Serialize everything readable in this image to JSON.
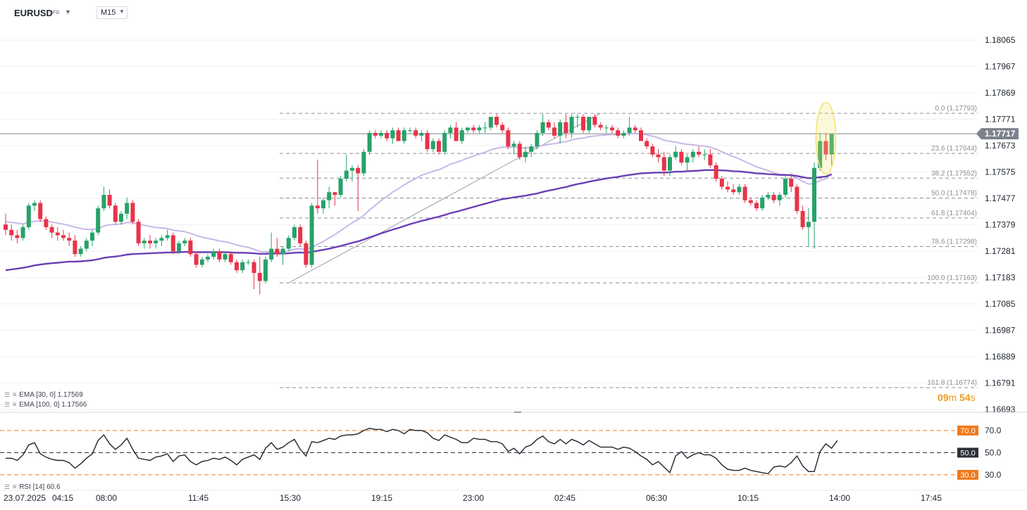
{
  "header": {
    "symbol": "EURUSD",
    "symbol_tag": "CFD",
    "timeframe": "M15"
  },
  "price_axis": {
    "labels": [
      "1.18065",
      "1.17967",
      "1.17869",
      "1.17771",
      "1.17673",
      "1.17575",
      "1.17477",
      "1.17379",
      "1.17281",
      "1.17183",
      "1.17085",
      "1.16987",
      "1.16889",
      "1.16791",
      "1.16693"
    ],
    "current_price": "1.17717"
  },
  "time_axis": {
    "labels": [
      "23.07.2025",
      "04:15",
      "08:00",
      "11:45",
      "15:30",
      "19:15",
      "23:00",
      "02:45",
      "06:30",
      "10:15",
      "14:00",
      "17:45"
    ]
  },
  "fibonacci": [
    {
      "label": "0.0 (1.17793)",
      "price": 1.17793
    },
    {
      "label": "23.6 (1.17644)",
      "price": 1.17644
    },
    {
      "label": "38.2 (1.17552)",
      "price": 1.17552
    },
    {
      "label": "50.0 (1.17478)",
      "price": 1.17478
    },
    {
      "label": "61.8 (1.17404)",
      "price": 1.17404
    },
    {
      "label": "78.6 (1.17298)",
      "price": 1.17298
    },
    {
      "label": "100.0 (1.17163)",
      "price": 1.17163
    },
    {
      "label": "161.8 (1.16774)",
      "price": 1.16774
    }
  ],
  "indicators": {
    "ema30": "EMA [30, 0]  1.17569",
    "ema100": "EMA [100, 0]  1.17566",
    "rsi": "RSI [14]  60.6"
  },
  "rsi_axis": {
    "upper": "70.0",
    "middle": "50.0",
    "lower": "30.0",
    "upper_tag": "70.0",
    "middle_tag": "50.0",
    "lower_tag": "30.0"
  },
  "countdown": {
    "minutes": "09",
    "minutes_unit": "m",
    "seconds": "54",
    "seconds_unit": "s"
  },
  "colors": {
    "bull": "#26a269",
    "bear": "#e8334a",
    "ema30": "#c9b8e6",
    "ema100": "#6b3fb5",
    "fib": "#8a8f98",
    "rsi_level": "#f07a1a",
    "highlight": "#f5e36a"
  },
  "chart_data": {
    "type": "candlestick",
    "timeframe": "M15",
    "rsi_period": 14,
    "candles": [
      [
        1.1738,
        1.1742,
        1.1734,
        1.1736
      ],
      [
        1.1736,
        1.1738,
        1.1732,
        1.1734
      ],
      [
        1.1734,
        1.1736,
        1.1731,
        1.1733
      ],
      [
        1.1733,
        1.1738,
        1.1732,
        1.1737
      ],
      [
        1.1737,
        1.1746,
        1.1736,
        1.1745
      ],
      [
        1.1745,
        1.1747,
        1.1743,
        1.1746
      ],
      [
        1.1746,
        1.1747,
        1.1739,
        1.174
      ],
      [
        1.174,
        1.1741,
        1.1736,
        1.1737
      ],
      [
        1.1737,
        1.1738,
        1.1733,
        1.1735
      ],
      [
        1.1735,
        1.1737,
        1.1732,
        1.1734
      ],
      [
        1.1734,
        1.1736,
        1.1732,
        1.1733
      ],
      [
        1.1733,
        1.1735,
        1.173,
        1.1732
      ],
      [
        1.1732,
        1.1734,
        1.1726,
        1.1727
      ],
      [
        1.1727,
        1.173,
        1.1726,
        1.1729
      ],
      [
        1.1729,
        1.1733,
        1.1728,
        1.1732
      ],
      [
        1.1732,
        1.1736,
        1.173,
        1.1735
      ],
      [
        1.1735,
        1.1745,
        1.1734,
        1.1744
      ],
      [
        1.1744,
        1.1752,
        1.1743,
        1.1749
      ],
      [
        1.1749,
        1.1751,
        1.1744,
        1.1745
      ],
      [
        1.1745,
        1.1746,
        1.1738,
        1.1739
      ],
      [
        1.1739,
        1.1743,
        1.1738,
        1.1742
      ],
      [
        1.1742,
        1.1748,
        1.174,
        1.1746
      ],
      [
        1.1746,
        1.1747,
        1.1738,
        1.1739
      ],
      [
        1.1739,
        1.174,
        1.173,
        1.1731
      ],
      [
        1.1731,
        1.1733,
        1.1729,
        1.1732
      ],
      [
        1.1732,
        1.1734,
        1.1729,
        1.1731
      ],
      [
        1.1731,
        1.1733,
        1.1729,
        1.1732
      ],
      [
        1.1732,
        1.1734,
        1.173,
        1.1733
      ],
      [
        1.1733,
        1.1736,
        1.1732,
        1.1734
      ],
      [
        1.1734,
        1.1735,
        1.1727,
        1.1728
      ],
      [
        1.1728,
        1.1732,
        1.1727,
        1.1731
      ],
      [
        1.1731,
        1.1733,
        1.173,
        1.1732
      ],
      [
        1.1732,
        1.1733,
        1.1726,
        1.1727
      ],
      [
        1.1727,
        1.1728,
        1.1722,
        1.1723
      ],
      [
        1.1723,
        1.1726,
        1.1722,
        1.1725
      ],
      [
        1.1725,
        1.1727,
        1.1724,
        1.1726
      ],
      [
        1.1726,
        1.1729,
        1.1725,
        1.1728
      ],
      [
        1.1728,
        1.1729,
        1.1724,
        1.1725
      ],
      [
        1.1725,
        1.1728,
        1.1724,
        1.1727
      ],
      [
        1.1727,
        1.1728,
        1.1723,
        1.1724
      ],
      [
        1.1724,
        1.1725,
        1.172,
        1.1721
      ],
      [
        1.1721,
        1.1725,
        1.172,
        1.1724
      ],
      [
        1.1724,
        1.1725,
        1.1723,
        1.1724
      ],
      [
        1.1724,
        1.1725,
        1.1714,
        1.172
      ],
      [
        1.172,
        1.1726,
        1.1712,
        1.1717
      ],
      [
        1.1717,
        1.1726,
        1.1716,
        1.1725
      ],
      [
        1.1725,
        1.1735,
        1.1724,
        1.1729
      ],
      [
        1.1729,
        1.1733,
        1.1726,
        1.1727
      ],
      [
        1.1727,
        1.173,
        1.1723,
        1.1729
      ],
      [
        1.1729,
        1.1734,
        1.1728,
        1.1733
      ],
      [
        1.1733,
        1.1738,
        1.1732,
        1.1737
      ],
      [
        1.1737,
        1.1738,
        1.173,
        1.1731
      ],
      [
        1.1731,
        1.1732,
        1.1722,
        1.1723
      ],
      [
        1.1723,
        1.1746,
        1.1722,
        1.1745
      ],
      [
        1.1745,
        1.1762,
        1.1742,
        1.1744
      ],
      [
        1.1744,
        1.1748,
        1.1742,
        1.1747
      ],
      [
        1.1747,
        1.1752,
        1.1744,
        1.175
      ],
      [
        1.175,
        1.175,
        1.1745,
        1.1749
      ],
      [
        1.1749,
        1.1756,
        1.1748,
        1.1755
      ],
      [
        1.1755,
        1.1764,
        1.1754,
        1.1758
      ],
      [
        1.1758,
        1.176,
        1.1754,
        1.1759
      ],
      [
        1.1759,
        1.176,
        1.1743,
        1.1757
      ],
      [
        1.1757,
        1.1766,
        1.1756,
        1.1765
      ],
      [
        1.1765,
        1.1773,
        1.1764,
        1.1772
      ],
      [
        1.1772,
        1.1773,
        1.177,
        1.1771
      ],
      [
        1.1771,
        1.1773,
        1.177,
        1.1772
      ],
      [
        1.1772,
        1.1773,
        1.1769,
        1.177
      ],
      [
        1.177,
        1.1774,
        1.1768,
        1.1773
      ],
      [
        1.1773,
        1.1774,
        1.1769,
        1.1769
      ],
      [
        1.1769,
        1.1774,
        1.1768,
        1.1773
      ],
      [
        1.1773,
        1.1774,
        1.1772,
        1.1773
      ],
      [
        1.1773,
        1.1774,
        1.177,
        1.1771
      ],
      [
        1.1771,
        1.1773,
        1.1769,
        1.1772
      ],
      [
        1.1772,
        1.1773,
        1.1765,
        1.1766
      ],
      [
        1.1766,
        1.177,
        1.1765,
        1.1769
      ],
      [
        1.1769,
        1.177,
        1.1764,
        1.1765
      ],
      [
        1.1765,
        1.1773,
        1.1764,
        1.1772
      ],
      [
        1.1772,
        1.1775,
        1.177,
        1.1774
      ],
      [
        1.1774,
        1.1776,
        1.1769,
        1.1769
      ],
      [
        1.1769,
        1.1774,
        1.1768,
        1.1773
      ],
      [
        1.1773,
        1.1774,
        1.1772,
        1.1774
      ],
      [
        1.1774,
        1.1775,
        1.1772,
        1.1773
      ],
      [
        1.1773,
        1.1775,
        1.1772,
        1.1774
      ],
      [
        1.1774,
        1.1776,
        1.1772,
        1.1774
      ],
      [
        1.1774,
        1.1778,
        1.1773,
        1.1778
      ],
      [
        1.1778,
        1.1779,
        1.1774,
        1.1775
      ],
      [
        1.1775,
        1.1776,
        1.1772,
        1.1773
      ],
      [
        1.1773,
        1.1774,
        1.1766,
        1.1767
      ],
      [
        1.1767,
        1.1769,
        1.1764,
        1.1768
      ],
      [
        1.1768,
        1.1769,
        1.1762,
        1.1763
      ],
      [
        1.1763,
        1.1767,
        1.1761,
        1.1765
      ],
      [
        1.1765,
        1.1768,
        1.1763,
        1.1767
      ],
      [
        1.1767,
        1.1773,
        1.1766,
        1.1772
      ],
      [
        1.1772,
        1.1779,
        1.1771,
        1.1776
      ],
      [
        1.1776,
        1.1777,
        1.1773,
        1.1774
      ],
      [
        1.1774,
        1.1776,
        1.177,
        1.1771
      ],
      [
        1.1771,
        1.1777,
        1.1768,
        1.1776
      ],
      [
        1.1776,
        1.1779,
        1.177,
        1.1772
      ],
      [
        1.1772,
        1.1779,
        1.177,
        1.1778
      ],
      [
        1.1778,
        1.1779,
        1.1774,
        1.1778
      ],
      [
        1.1778,
        1.1779,
        1.1772,
        1.1773
      ],
      [
        1.1773,
        1.1778,
        1.1772,
        1.1778
      ],
      [
        1.1778,
        1.1779,
        1.1774,
        1.1775
      ],
      [
        1.1775,
        1.1776,
        1.1773,
        1.1774
      ],
      [
        1.1774,
        1.1775,
        1.1772,
        1.1774
      ],
      [
        1.1774,
        1.1775,
        1.1772,
        1.1773
      ],
      [
        1.1773,
        1.1774,
        1.177,
        1.1771
      ],
      [
        1.1771,
        1.1773,
        1.177,
        1.1772
      ],
      [
        1.1772,
        1.1778,
        1.1771,
        1.1774
      ],
      [
        1.1774,
        1.1775,
        1.1772,
        1.1773
      ],
      [
        1.1773,
        1.1774,
        1.1769,
        1.1769
      ],
      [
        1.1769,
        1.177,
        1.1766,
        1.1767
      ],
      [
        1.1767,
        1.1768,
        1.1763,
        1.1764
      ],
      [
        1.1764,
        1.1766,
        1.1761,
        1.1763
      ],
      [
        1.1763,
        1.1765,
        1.1756,
        1.1758
      ],
      [
        1.1758,
        1.1764,
        1.1756,
        1.1763
      ],
      [
        1.1763,
        1.1767,
        1.1762,
        1.1765
      ],
      [
        1.1765,
        1.1766,
        1.176,
        1.1761
      ],
      [
        1.1761,
        1.1764,
        1.1758,
        1.1763
      ],
      [
        1.1763,
        1.1766,
        1.1761,
        1.1765
      ],
      [
        1.1765,
        1.1767,
        1.1763,
        1.1764
      ],
      [
        1.1764,
        1.1766,
        1.1762,
        1.1764
      ],
      [
        1.1764,
        1.1766,
        1.1759,
        1.176
      ],
      [
        1.176,
        1.1761,
        1.1754,
        1.1755
      ],
      [
        1.1755,
        1.1756,
        1.1751,
        1.1752
      ],
      [
        1.1752,
        1.1754,
        1.175,
        1.1751
      ],
      [
        1.1751,
        1.1753,
        1.1749,
        1.175
      ],
      [
        1.175,
        1.1753,
        1.1749,
        1.1752
      ],
      [
        1.1752,
        1.1753,
        1.1746,
        1.1747
      ],
      [
        1.1747,
        1.1748,
        1.1745,
        1.1746
      ],
      [
        1.1746,
        1.1747,
        1.1743,
        1.1744
      ],
      [
        1.1744,
        1.1749,
        1.1743,
        1.1748
      ],
      [
        1.1748,
        1.175,
        1.1747,
        1.1749
      ],
      [
        1.1749,
        1.175,
        1.1746,
        1.1747
      ],
      [
        1.1747,
        1.175,
        1.1745,
        1.1749
      ],
      [
        1.1749,
        1.1756,
        1.1748,
        1.1755
      ],
      [
        1.1755,
        1.1757,
        1.175,
        1.1752
      ],
      [
        1.1752,
        1.1753,
        1.1742,
        1.1743
      ],
      [
        1.1743,
        1.1745,
        1.1736,
        1.1737
      ],
      [
        1.1737,
        1.1744,
        1.173,
        1.1739
      ],
      [
        1.1739,
        1.1761,
        1.1729,
        1.1759
      ],
      [
        1.1759,
        1.1772,
        1.1758,
        1.1769
      ],
      [
        1.1769,
        1.1772,
        1.1762,
        1.1764
      ],
      [
        1.1764,
        1.1771,
        1.176,
        1.17717
      ]
    ],
    "ema30": [
      1.1739,
      1.17388,
      1.17385,
      1.17383,
      1.17388,
      1.17392,
      1.17393,
      1.17392,
      1.17389,
      1.17385,
      1.17381,
      1.17376,
      1.1737,
      1.17365,
      1.17362,
      1.17361,
      1.17366,
      1.17374,
      1.17379,
      1.1738,
      1.17382,
      1.17387,
      1.17387,
      1.17381,
      1.17377,
      1.17373,
      1.17369,
      1.17367,
      1.17365,
      1.17359,
      1.17356,
      1.17353,
      1.17347,
      1.17339,
      1.17333,
      1.17328,
      1.17324,
      1.17319,
      1.17316,
      1.17311,
      1.17304,
      1.17299,
      1.17295,
      1.17288,
      1.1728,
      1.17278,
      1.17279,
      1.17278,
      1.17279,
      1.17282,
      1.17288,
      1.1729,
      1.17286,
      1.17296,
      1.17306,
      1.17317,
      1.1733,
      1.17342,
      1.17357,
      1.17372,
      1.17386,
      1.17398,
      1.17414,
      1.17434,
      1.17451,
      1.17469,
      1.17484,
      1.175,
      1.17513,
      1.17527,
      1.1754,
      1.17551,
      1.17563,
      1.1757,
      1.17578,
      1.17583,
      1.17593,
      1.17604,
      1.1761,
      1.17618,
      1.17627,
      1.17634,
      1.17642,
      1.17648,
      1.17657,
      1.17663,
      1.17667,
      1.17667,
      1.17668,
      1.17665,
      1.17664,
      1.17665,
      1.17668,
      1.17674,
      1.17678,
      1.1768,
      1.17685,
      1.17688,
      1.17694,
      1.17699,
      1.17701,
      1.17706,
      1.17709,
      1.17711,
      1.17713,
      1.17714,
      1.17714,
      1.17715,
      1.17717,
      1.17718,
      1.17716,
      1.17713,
      1.17708,
      1.17702,
      1.17693,
      1.17689,
      1.17686,
      1.17681,
      1.17678,
      1.17676,
      1.17673,
      1.17671,
      1.17667,
      1.1766,
      1.1765,
      1.17641,
      1.17632,
      1.17624,
      1.17614,
      1.17604,
      1.17594,
      1.17587,
      1.1758,
      1.17573,
      1.17566,
      1.17565,
      1.17562,
      1.17552,
      1.1754,
      1.1753,
      1.17533,
      1.17543,
      1.1755,
      1.17569
    ],
    "ema100": [
      1.1721,
      1.17213,
      1.17216,
      1.17219,
      1.17223,
      1.17228,
      1.17231,
      1.17234,
      1.17236,
      1.17238,
      1.1724,
      1.17242,
      1.17242,
      1.17243,
      1.17245,
      1.17247,
      1.17251,
      1.17256,
      1.17259,
      1.17261,
      1.17264,
      1.17268,
      1.1727,
      1.17271,
      1.17272,
      1.17273,
      1.17274,
      1.17275,
      1.17276,
      1.17276,
      1.17277,
      1.17278,
      1.17278,
      1.17277,
      1.17277,
      1.17277,
      1.17277,
      1.17277,
      1.17277,
      1.17276,
      1.17275,
      1.17275,
      1.17274,
      1.17273,
      1.17271,
      1.17271,
      1.17272,
      1.17272,
      1.17272,
      1.17273,
      1.17275,
      1.17276,
      1.17275,
      1.17278,
      1.17282,
      1.17286,
      1.1729,
      1.17295,
      1.173,
      1.17306,
      1.17312,
      1.17317,
      1.17324,
      1.17332,
      1.17339,
      1.17347,
      1.17354,
      1.17361,
      1.17367,
      1.17374,
      1.17381,
      1.17387,
      1.17393,
      1.17398,
      1.17404,
      1.17409,
      1.17415,
      1.17422,
      1.17427,
      1.17433,
      1.17439,
      1.17445,
      1.17451,
      1.17457,
      1.17463,
      1.17469,
      1.17474,
      1.17477,
      1.17481,
      1.17484,
      1.17487,
      1.17491,
      1.17495,
      1.17501,
      1.17506,
      1.1751,
      1.17515,
      1.17519,
      1.17525,
      1.1753,
      1.17534,
      1.17539,
      1.17543,
      1.17547,
      1.17551,
      1.17554,
      1.17557,
      1.17561,
      1.17564,
      1.17567,
      1.1757,
      1.17571,
      1.17572,
      1.17573,
      1.17573,
      1.17574,
      1.17576,
      1.17576,
      1.17578,
      1.17579,
      1.1758,
      1.17582,
      1.17582,
      1.17582,
      1.17581,
      1.1758,
      1.17578,
      1.17577,
      1.17575,
      1.17573,
      1.1757,
      1.17569,
      1.17567,
      1.17566,
      1.17564,
      1.17564,
      1.17563,
      1.1756,
      1.17556,
      1.17552,
      1.17553,
      1.17556,
      1.17558,
      1.17566
    ],
    "rsi": [
      45,
      45,
      43,
      48,
      57,
      59,
      49,
      46,
      44,
      43,
      43,
      41,
      36,
      40,
      45,
      49,
      61,
      66,
      58,
      53,
      57,
      63,
      53,
      45,
      44,
      43,
      46,
      47,
      49,
      42,
      47,
      48,
      42,
      39,
      42,
      43,
      45,
      44,
      46,
      43,
      39,
      44,
      46,
      48,
      44,
      54,
      59,
      53,
      55,
      59,
      62,
      53,
      47,
      60,
      59,
      61,
      63,
      62,
      65,
      66,
      66,
      67,
      70,
      72,
      71,
      71,
      69,
      71,
      70,
      67,
      71,
      70,
      70,
      68,
      63,
      61,
      66,
      64,
      62,
      59,
      59,
      63,
      62,
      62,
      60,
      60,
      58,
      51,
      54,
      49,
      55,
      57,
      62,
      65,
      60,
      58,
      62,
      58,
      62,
      60,
      57,
      61,
      58,
      55,
      55,
      55,
      53,
      55,
      54,
      51,
      47,
      44,
      39,
      42,
      37,
      32,
      47,
      51,
      45,
      48,
      50,
      48,
      48,
      45,
      39,
      35,
      34,
      34,
      36,
      34,
      33,
      32,
      31,
      37,
      38,
      37,
      41,
      47,
      38,
      33,
      33,
      51,
      58,
      54,
      61
    ],
    "fib_retracement": {
      "high": 1.17793,
      "low": 1.17163,
      "levels": [
        0.0,
        23.6,
        38.2,
        50.0,
        61.8,
        78.6,
        100.0,
        161.8
      ]
    },
    "ylim": [
      1.16693,
      1.18065
    ],
    "rsi_ylim": [
      20,
      80
    ],
    "grid": true
  }
}
